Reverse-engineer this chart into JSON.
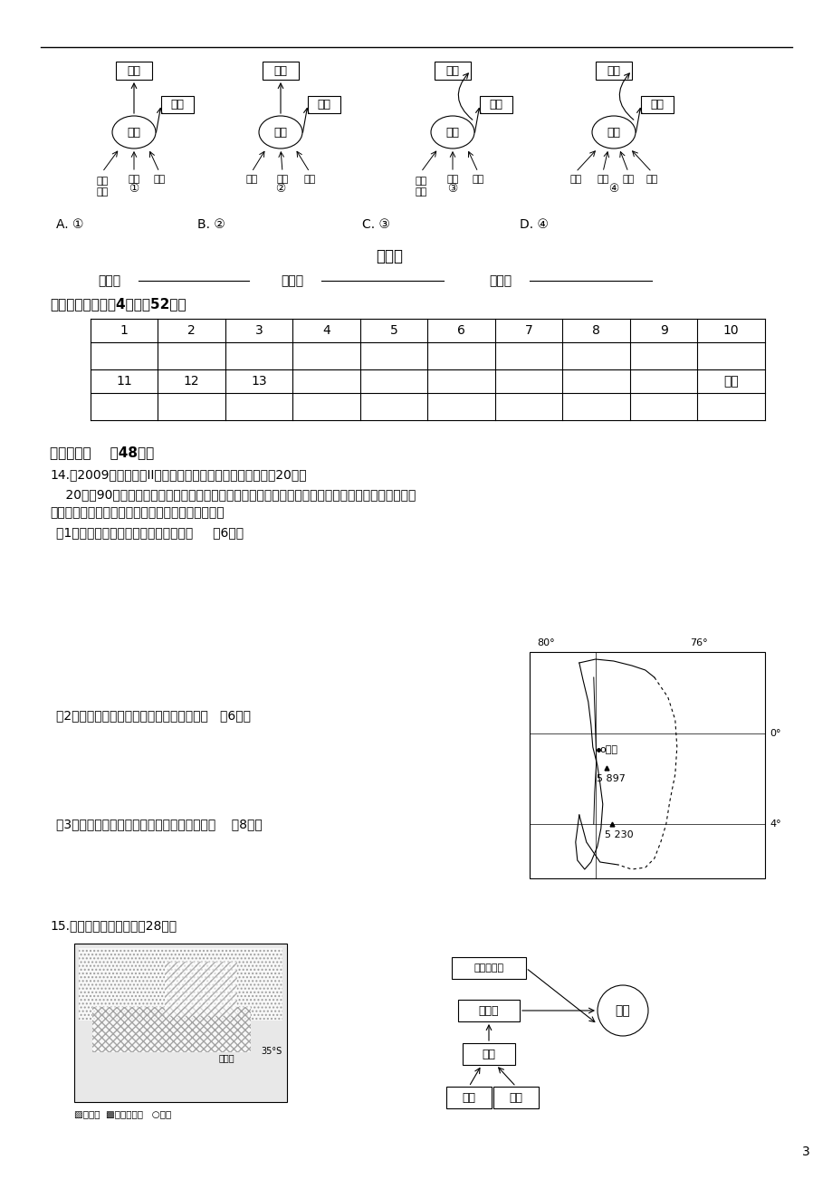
{
  "page_width": 9.2,
  "page_height": 13.02,
  "bg_color": "#ffffff",
  "section_title_answer": "答题卡",
  "form_label1": "班级：",
  "form_label2": "姓名：",
  "form_label3": "编号：",
  "section1_title": "一、选择题（每题4分，共52分）",
  "table_numbers_row1": [
    "1",
    "2",
    "3",
    "4",
    "5",
    "6",
    "7",
    "8",
    "9",
    "10"
  ],
  "table_numbers_row2": [
    "11",
    "12",
    "13"
  ],
  "table_defen": "得分",
  "section2_title": "二、综合题    （48分）",
  "q14_head": "14.（2009年全国文综II）阅读分析材料，回答下列问题。（20分）",
  "q14_text1": "    20世纪90年代以来花卉消费的国际需求迅速增长，北美、日本、欧洲成为世界三大花卉消费市场。同",
  "q14_text2": "期，下图所示国家成为所在大洲第二大花卉出口国。",
  "q14_q1": "（1）简述该国的地理位置及地形特征。     （6分）",
  "q14_q2": "（2）说明该国有利于花卉生长的自然条件。   （6分）",
  "q14_q3": "（3）概述该国发展花卉产业的社会经济条件。    （8分）",
  "q15_head": "15.读下图，回答问题。（28分）",
  "map_80": "80°",
  "map_76": "76°",
  "map_0": "0°",
  "map_4": "4°",
  "map_city": "基多",
  "map_peak1": "5 897",
  "map_peak2": "5 230",
  "page_num": "3",
  "fc_labels": [
    "深加工产品",
    "农产品",
    "作物",
    "市场",
    "桑基",
    "蔗基"
  ],
  "options_text_parts": [
    "A. ①",
    "B. ②",
    "C. ③",
    "D. ④"
  ],
  "diag1_bottom": [
    "天然\n草地",
    "作物",
    "作物"
  ],
  "diag2_bottom": [
    "牧草",
    "作物",
    "作物"
  ],
  "diag3_bottom": [
    "天然\n草地",
    "作物",
    "作物"
  ],
  "diag4_bottom": [
    "牧草",
    "作物",
    "作物",
    "作物"
  ]
}
